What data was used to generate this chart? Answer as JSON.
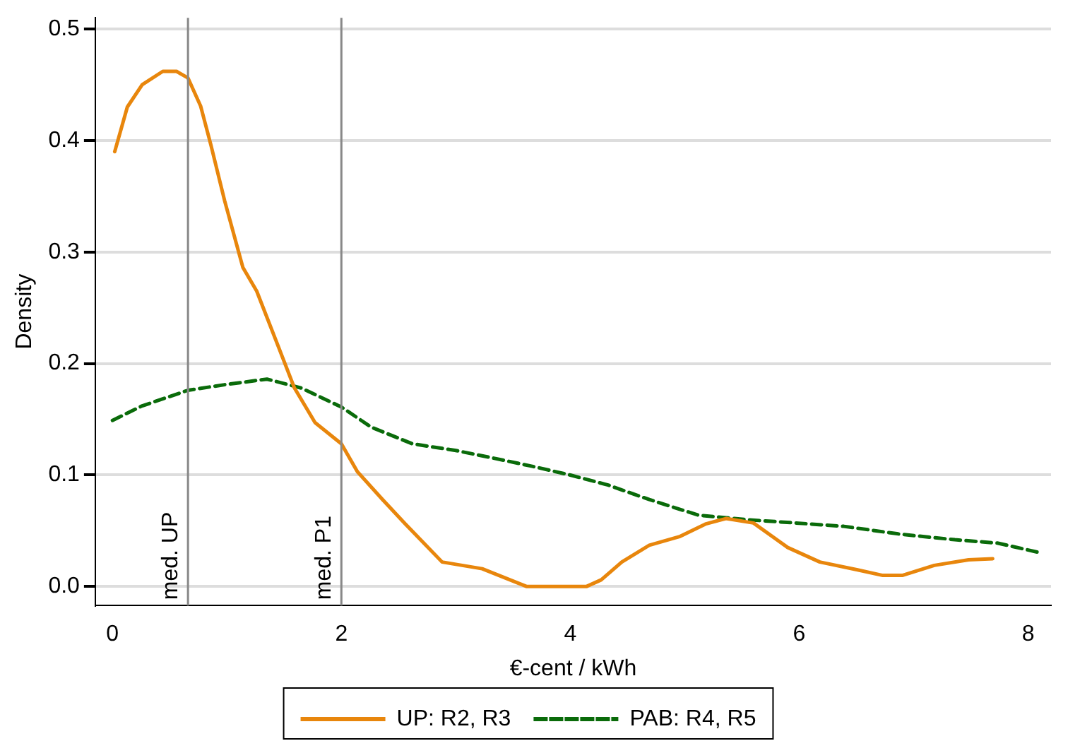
{
  "chart_data": {
    "type": "line",
    "xlabel": "€-cent / kWh",
    "ylabel": "Density",
    "xlim": [
      -0.15,
      8.2
    ],
    "xticks": [
      0,
      2,
      4,
      6,
      8
    ],
    "ylim": [
      -0.017,
      0.51
    ],
    "yticks": [
      {
        "value": 0,
        "label": "0.0"
      },
      0.1,
      0.2,
      0.3,
      0.4,
      0.5
    ],
    "grid": "y",
    "legend": "bottom",
    "marker": "none",
    "ref_lines": [
      {
        "axis": "x",
        "value": 0.66,
        "label": "med. UP",
        "color": "#888888"
      },
      {
        "axis": "x",
        "value": 2,
        "label": "med. P1",
        "color": "#888888"
      }
    ],
    "series": [
      {
        "name": "UP: R2, R3",
        "color": "#e8860c",
        "line_style": "solid",
        "x": [
          0.02,
          0.13,
          0.26,
          0.44,
          0.56,
          0.66,
          0.77,
          0.86,
          0.98,
          1.14,
          1.26,
          1.45,
          1.59,
          1.77,
          2.0,
          2.14,
          2.36,
          2.56,
          2.88,
          3.23,
          3.62,
          4.14,
          4.27,
          4.45,
          4.69,
          4.96,
          5.18,
          5.36,
          5.6,
          5.9,
          6.18,
          6.51,
          6.73,
          6.9,
          7.18,
          7.48,
          7.69
        ],
        "values": [
          0.39,
          0.43,
          0.45,
          0.462,
          0.462,
          0.456,
          0.431,
          0.396,
          0.346,
          0.286,
          0.265,
          0.215,
          0.178,
          0.147,
          0.128,
          0.103,
          0.078,
          0.056,
          0.022,
          0.016,
          0,
          0,
          0.006,
          0.022,
          0.037,
          0.045,
          0.056,
          0.061,
          0.057,
          0.035,
          0.022,
          0.015,
          0.01,
          0.01,
          0.019,
          0.024,
          0.025
        ]
      },
      {
        "name": "PAB: R4, R5",
        "color": "#0a6b0a",
        "line_style": "dashed",
        "x": [
          0,
          0.26,
          0.66,
          0.98,
          1.35,
          1.65,
          2.0,
          2.26,
          2.62,
          3.0,
          3.29,
          3.66,
          4.0,
          4.33,
          4.69,
          5.12,
          5.54,
          5.97,
          6.39,
          6.88,
          7.36,
          7.73,
          8.12
        ],
        "values": [
          0.149,
          0.162,
          0.176,
          0.181,
          0.186,
          0.178,
          0.161,
          0.143,
          0.128,
          0.122,
          0.116,
          0.108,
          0.1,
          0.091,
          0.078,
          0.064,
          0.06,
          0.057,
          0.054,
          0.047,
          0.042,
          0.039,
          0.03
        ]
      }
    ]
  }
}
